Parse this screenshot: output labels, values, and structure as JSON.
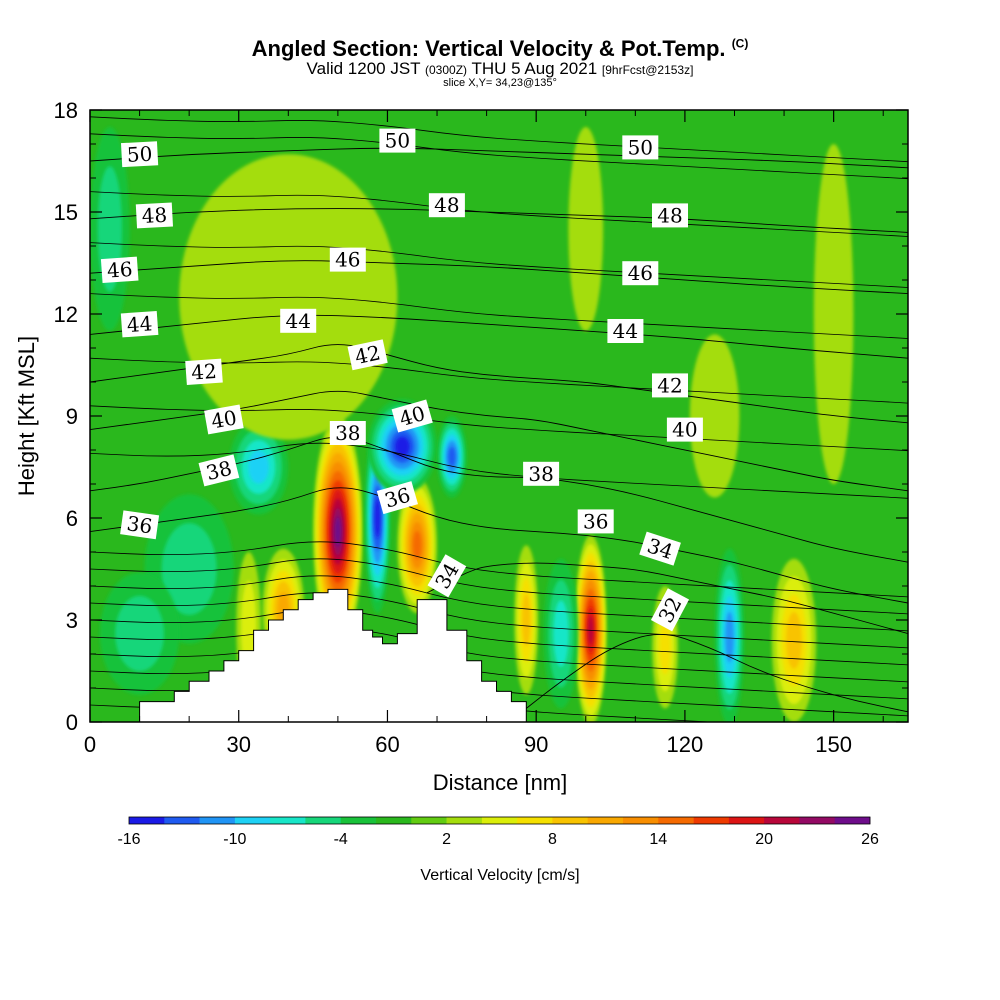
{
  "title": {
    "main": "Angled Section: Vertical Velocity & Pot.Temp.",
    "main_sup": "(C)",
    "valid_prefix": "Valid 1200 JST",
    "valid_zulu": "(0300Z)",
    "valid_date": "THU 5 Aug 2021",
    "forecast": "[9hrFcst@2153z]",
    "slice": "slice X,Y= 34,23@135°"
  },
  "chart_data": {
    "type": "heatmap",
    "xlabel": "Distance [nm]",
    "ylabel": "Height [Kft MSL]",
    "xlim": [
      0,
      165
    ],
    "ylim": [
      0,
      18
    ],
    "x_ticks": [
      0,
      30,
      60,
      90,
      120,
      150
    ],
    "y_ticks": [
      0,
      3,
      6,
      9,
      12,
      15,
      18
    ],
    "colorbar": {
      "label": "Vertical Velocity [cm/s]",
      "tick_values": [
        "-16",
        "-10",
        "-4",
        "2",
        "8",
        "14",
        "20",
        "26"
      ],
      "levels": [
        -16,
        -14,
        -12,
        -10,
        -8,
        -6,
        -4,
        -2,
        0,
        2,
        4,
        6,
        8,
        10,
        12,
        14,
        16,
        18,
        20,
        22,
        24,
        26
      ],
      "colors": [
        "#1a1ae6",
        "#1f5af0",
        "#2094f5",
        "#1ed1f5",
        "#18e6c8",
        "#16d67a",
        "#19c23a",
        "#2ab81d",
        "#62cc12",
        "#a4dd0d",
        "#dbee0a",
        "#f5e000",
        "#f8c300",
        "#f9a800",
        "#f88e00",
        "#f56a00",
        "#ee3a00",
        "#dc1414",
        "#b8063a",
        "#930a64",
        "#6e0d8a"
      ]
    },
    "terrain_profile": {
      "x": [
        0,
        10,
        10,
        17,
        17,
        20,
        20,
        24,
        24,
        27,
        27,
        30,
        30,
        33,
        33,
        36,
        36,
        39,
        39,
        42,
        42,
        45,
        45,
        48,
        48,
        52,
        52,
        55,
        55,
        57,
        57,
        59,
        59,
        62,
        62,
        66,
        66,
        72,
        72,
        76,
        76,
        79,
        79,
        82,
        82,
        85,
        85,
        88,
        88,
        165
      ],
      "y": [
        0,
        0,
        0.6,
        0.6,
        0.9,
        0.9,
        1.2,
        1.2,
        1.5,
        1.5,
        1.8,
        1.8,
        2.1,
        2.1,
        2.7,
        2.7,
        3.0,
        3.0,
        3.3,
        3.3,
        3.6,
        3.6,
        3.8,
        3.8,
        3.9,
        3.9,
        3.3,
        3.3,
        2.7,
        2.7,
        2.5,
        2.5,
        2.3,
        2.3,
        2.6,
        2.6,
        3.6,
        3.6,
        2.7,
        2.7,
        1.8,
        1.8,
        1.2,
        1.2,
        0.9,
        0.9,
        0.6,
        0.6,
        0,
        0
      ]
    },
    "velocity_features": [
      {
        "x": 50,
        "y": 5.6,
        "rx": 5,
        "ry": 3.4,
        "value": 24
      },
      {
        "x": 66,
        "y": 5.2,
        "rx": 4,
        "ry": 2.0,
        "value": 14
      },
      {
        "x": 101,
        "y": 2.7,
        "rx": 3.2,
        "ry": 2.8,
        "value": 20
      },
      {
        "x": 88,
        "y": 3.0,
        "rx": 2.4,
        "ry": 2.2,
        "value": 8
      },
      {
        "x": 142,
        "y": 2.4,
        "rx": 4.5,
        "ry": 2.4,
        "value": 8
      },
      {
        "x": 39,
        "y": 3.3,
        "rx": 4.2,
        "ry": 1.8,
        "value": 10
      },
      {
        "x": 32,
        "y": 2.8,
        "rx": 2.5,
        "ry": 2.2,
        "value": 4
      },
      {
        "x": 116,
        "y": 2.2,
        "rx": 2.6,
        "ry": 1.8,
        "value": 6
      },
      {
        "x": 58,
        "y": 6.0,
        "rx": 2.6,
        "ry": 2.8,
        "value": -14
      },
      {
        "x": 34,
        "y": 7.5,
        "rx": 6,
        "ry": 1.4,
        "value": -8
      },
      {
        "x": 63,
        "y": 8.1,
        "rx": 7,
        "ry": 1.4,
        "value": -14
      },
      {
        "x": 73,
        "y": 7.8,
        "rx": 3,
        "ry": 1.2,
        "value": -12
      },
      {
        "x": 95,
        "y": 2.6,
        "rx": 3.5,
        "ry": 2.2,
        "value": -6
      },
      {
        "x": 129,
        "y": 2.5,
        "rx": 3,
        "ry": 2.6,
        "value": -10
      },
      {
        "x": 20,
        "y": 4.5,
        "rx": 9,
        "ry": 2.2,
        "value": -4
      },
      {
        "x": 10,
        "y": 2.6,
        "rx": 8,
        "ry": 1.8,
        "value": -4
      },
      {
        "x": 40,
        "y": 12.5,
        "rx": 22,
        "ry": 4.2,
        "value": 2
      },
      {
        "x": 100,
        "y": 14.5,
        "rx": 3.5,
        "ry": 3,
        "value": 2
      },
      {
        "x": 150,
        "y": 12,
        "rx": 4,
        "ry": 5,
        "value": 2
      },
      {
        "x": 126,
        "y": 9.0,
        "rx": 5,
        "ry": 2.4,
        "value": 2
      },
      {
        "x": 4,
        "y": 14.5,
        "rx": 4,
        "ry": 3,
        "value": -4
      }
    ],
    "contours": [
      {
        "label": "32",
        "x": [
          88,
          95,
          105,
          115,
          125,
          135,
          145,
          155,
          165
        ],
        "y": [
          0.4,
          1.2,
          2.2,
          2.7,
          2.2,
          1.5,
          1.0,
          0.6,
          0.3
        ]
      },
      {
        "label": "34",
        "x": [
          68,
          72,
          76,
          80,
          90,
          100,
          110,
          120,
          130,
          140,
          150,
          160,
          165
        ],
        "y": [
          3.8,
          4.1,
          4.4,
          4.6,
          4.7,
          4.6,
          4.5,
          4.2,
          3.9,
          3.6,
          3.2,
          2.8,
          2.6
        ]
      },
      {
        "label": "36",
        "x": [
          0,
          10,
          20,
          30,
          40,
          50,
          60,
          70,
          80,
          90,
          100,
          110,
          120,
          130,
          140,
          150,
          165
        ],
        "y": [
          5.6,
          5.8,
          6.0,
          6.2,
          6.5,
          7.0,
          6.6,
          6.0,
          5.7,
          5.6,
          5.5,
          5.3,
          5.0,
          4.7,
          4.3,
          3.9,
          3.5
        ]
      },
      {
        "label": "38",
        "x": [
          0,
          10,
          20,
          30,
          40,
          50,
          60,
          70,
          80,
          90,
          100,
          110,
          120,
          130,
          140,
          150,
          165
        ],
        "y": [
          6.8,
          7.0,
          7.3,
          7.6,
          8.0,
          8.5,
          8.0,
          7.4,
          7.2,
          7.2,
          7.0,
          6.7,
          6.3,
          5.9,
          5.5,
          5.1,
          4.7
        ]
      },
      {
        "label": "40",
        "x": [
          0,
          10,
          20,
          30,
          40,
          50,
          60,
          70,
          80,
          90,
          100,
          110,
          120,
          130,
          140,
          150,
          165
        ],
        "y": [
          8.6,
          8.8,
          9.0,
          9.2,
          9.5,
          9.8,
          9.5,
          9.2,
          9.0,
          8.9,
          8.6,
          8.3,
          8.0,
          7.7,
          7.4,
          7.1,
          6.8
        ]
      },
      {
        "label": "42",
        "x": [
          0,
          10,
          20,
          30,
          40,
          50,
          60,
          70,
          80,
          90,
          100,
          110,
          120,
          130,
          140,
          150,
          165
        ],
        "y": [
          10.0,
          10.2,
          10.4,
          10.6,
          10.8,
          11.2,
          10.8,
          10.4,
          10.2,
          10.1,
          10.0,
          9.8,
          9.6,
          9.4,
          9.2,
          9.0,
          8.8
        ]
      },
      {
        "label": "44",
        "x": [
          0,
          20,
          40,
          60,
          80,
          100,
          120,
          140,
          165
        ],
        "y": [
          11.4,
          11.7,
          12.0,
          11.9,
          11.7,
          11.5,
          11.3,
          11.0,
          10.7
        ]
      },
      {
        "label": "46",
        "x": [
          0,
          20,
          40,
          60,
          80,
          100,
          120,
          140,
          165
        ],
        "y": [
          13.2,
          13.4,
          13.6,
          13.5,
          13.4,
          13.2,
          13.0,
          12.8,
          12.6
        ]
      },
      {
        "label": "48",
        "x": [
          0,
          20,
          40,
          60,
          80,
          100,
          120,
          140,
          165
        ],
        "y": [
          14.8,
          15.0,
          15.1,
          15.1,
          15.0,
          14.9,
          14.8,
          14.6,
          14.4
        ]
      },
      {
        "label": "50",
        "x": [
          0,
          20,
          40,
          60,
          80,
          100,
          120,
          140,
          165
        ],
        "y": [
          16.5,
          16.7,
          16.8,
          16.9,
          16.8,
          16.7,
          16.6,
          16.5,
          16.3
        ]
      }
    ],
    "extra_contour_y": [
      0.5,
      1.0,
      1.5,
      2.0,
      2.5,
      3.0,
      3.5,
      4.0,
      4.5,
      5.0,
      7.9,
      9.3,
      10.7,
      12.6,
      14.1,
      15.6,
      17.3,
      17.8
    ],
    "contour_labels": [
      {
        "text": "50",
        "x": 10,
        "y": 16.7,
        "angle": -3
      },
      {
        "text": "50",
        "x": 62,
        "y": 17.1,
        "angle": 0
      },
      {
        "text": "50",
        "x": 111,
        "y": 16.9,
        "angle": 0
      },
      {
        "text": "48",
        "x": 13,
        "y": 14.9,
        "angle": -3
      },
      {
        "text": "48",
        "x": 72,
        "y": 15.2,
        "angle": 0
      },
      {
        "text": "48",
        "x": 117,
        "y": 14.9,
        "angle": 0
      },
      {
        "text": "46",
        "x": 6,
        "y": 13.3,
        "angle": -4
      },
      {
        "text": "46",
        "x": 52,
        "y": 13.6,
        "angle": 0
      },
      {
        "text": "46",
        "x": 111,
        "y": 13.2,
        "angle": 0
      },
      {
        "text": "44",
        "x": 10,
        "y": 11.7,
        "angle": -4
      },
      {
        "text": "44",
        "x": 42,
        "y": 11.8,
        "angle": 0
      },
      {
        "text": "44",
        "x": 108,
        "y": 11.5,
        "angle": 0
      },
      {
        "text": "42",
        "x": 23,
        "y": 10.3,
        "angle": -4
      },
      {
        "text": "42",
        "x": 56,
        "y": 10.8,
        "angle": -12
      },
      {
        "text": "42",
        "x": 117,
        "y": 9.9,
        "angle": 0
      },
      {
        "text": "40",
        "x": 27,
        "y": 8.9,
        "angle": -10
      },
      {
        "text": "40",
        "x": 65,
        "y": 9.0,
        "angle": -16
      },
      {
        "text": "40",
        "x": 120,
        "y": 8.6,
        "angle": 0
      },
      {
        "text": "38",
        "x": 26,
        "y": 7.4,
        "angle": -14
      },
      {
        "text": "38",
        "x": 52,
        "y": 8.5,
        "angle": 0
      },
      {
        "text": "38",
        "x": 91,
        "y": 7.3,
        "angle": 0
      },
      {
        "text": "36",
        "x": 10,
        "y": 5.8,
        "angle": 8
      },
      {
        "text": "36",
        "x": 62,
        "y": 6.6,
        "angle": -16
      },
      {
        "text": "36",
        "x": 102,
        "y": 5.9,
        "angle": 0
      },
      {
        "text": "34",
        "x": 72,
        "y": 4.3,
        "angle": -60
      },
      {
        "text": "34",
        "x": 115,
        "y": 5.1,
        "angle": 18
      },
      {
        "text": "32",
        "x": 117,
        "y": 3.3,
        "angle": -62
      }
    ]
  }
}
